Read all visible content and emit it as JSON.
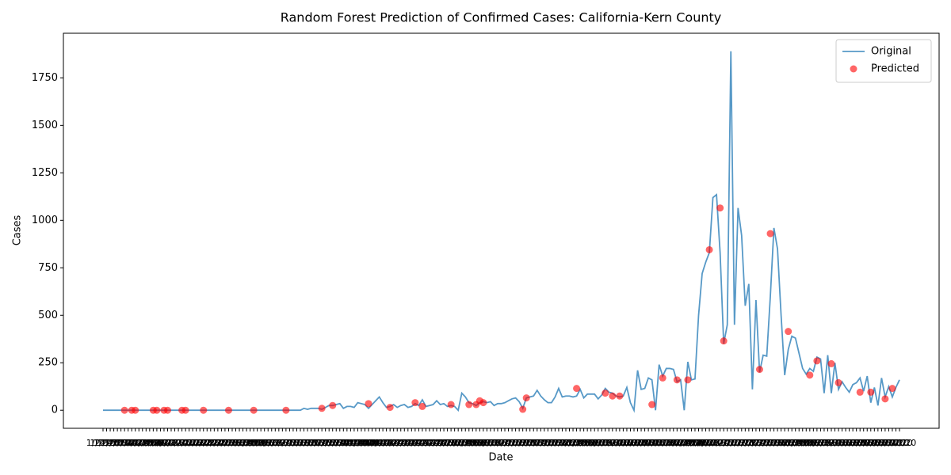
{
  "chart_data": {
    "type": "line",
    "title": "Random Forest Prediction of Confirmed Cases: California-Kern County",
    "x_label": "Date",
    "y_label": "Cases",
    "categories": [
      "1/22/20",
      "1/23/20",
      "1/24/20",
      "1/25/20",
      "1/26/20",
      "1/27/20",
      "1/28/20",
      "1/29/20",
      "1/30/20",
      "1/31/20",
      "2/1/20",
      "2/2/20",
      "2/3/20",
      "2/4/20",
      "2/5/20",
      "2/6/20",
      "2/7/20",
      "2/8/20",
      "2/9/20",
      "2/10/20",
      "2/11/20",
      "2/12/20",
      "2/13/20",
      "2/14/20",
      "2/15/20",
      "2/16/20",
      "2/17/20",
      "2/18/20",
      "2/19/20",
      "2/20/20",
      "2/21/20",
      "2/22/20",
      "2/23/20",
      "2/24/20",
      "2/25/20",
      "2/26/20",
      "2/27/20",
      "2/28/20",
      "2/29/20",
      "3/1/20",
      "3/2/20",
      "3/3/20",
      "3/4/20",
      "3/5/20",
      "3/6/20",
      "3/7/20",
      "3/8/20",
      "3/9/20",
      "3/10/20",
      "3/11/20",
      "3/12/20",
      "3/13/20",
      "3/14/20",
      "3/15/20",
      "3/16/20",
      "3/17/20",
      "3/18/20",
      "3/19/20",
      "3/20/20",
      "3/21/20",
      "3/22/20",
      "3/23/20",
      "3/24/20",
      "3/25/20",
      "3/26/20",
      "3/27/20",
      "3/28/20",
      "3/29/20",
      "3/30/20",
      "3/31/20",
      "4/1/20",
      "4/2/20",
      "4/3/20",
      "4/4/20",
      "4/5/20",
      "4/6/20",
      "4/7/20",
      "4/8/20",
      "4/9/20",
      "4/10/20",
      "4/11/20",
      "4/12/20",
      "4/13/20",
      "4/14/20",
      "4/15/20",
      "4/16/20",
      "4/17/20",
      "4/18/20",
      "4/19/20",
      "4/20/20",
      "4/21/20",
      "4/22/20",
      "4/23/20",
      "4/24/20",
      "4/25/20",
      "4/26/20",
      "4/27/20",
      "4/28/20",
      "4/29/20",
      "4/30/20",
      "5/1/20",
      "5/2/20",
      "5/3/20",
      "5/4/20",
      "5/5/20",
      "5/6/20",
      "5/7/20",
      "5/8/20",
      "5/9/20",
      "5/10/20",
      "5/11/20",
      "5/12/20",
      "5/13/20",
      "5/14/20",
      "5/15/20",
      "5/16/20",
      "5/17/20",
      "5/18/20",
      "5/19/20",
      "5/20/20",
      "5/21/20",
      "5/22/20",
      "5/23/20",
      "5/24/20",
      "5/25/20",
      "5/26/20",
      "5/27/20",
      "5/28/20",
      "5/29/20",
      "5/30/20",
      "5/31/20",
      "6/1/20",
      "6/2/20",
      "6/3/20",
      "6/4/20",
      "6/5/20",
      "6/6/20",
      "6/7/20",
      "6/8/20",
      "6/9/20",
      "6/10/20",
      "6/11/20",
      "6/12/20",
      "6/13/20",
      "6/14/20",
      "6/15/20",
      "6/16/20",
      "6/17/20",
      "6/18/20",
      "6/19/20",
      "6/20/20",
      "6/21/20",
      "6/22/20",
      "6/23/20",
      "6/24/20",
      "6/25/20",
      "6/26/20",
      "6/27/20",
      "6/28/20",
      "6/29/20",
      "6/30/20",
      "7/1/20",
      "7/2/20",
      "7/3/20",
      "7/4/20",
      "7/5/20",
      "7/6/20",
      "7/7/20",
      "7/8/20",
      "7/9/20",
      "7/10/20",
      "7/11/20",
      "7/12/20",
      "7/13/20",
      "7/14/20",
      "7/15/20",
      "7/16/20",
      "7/17/20",
      "7/18/20",
      "7/19/20",
      "7/20/20",
      "7/21/20",
      "7/22/20",
      "7/23/20",
      "7/24/20",
      "7/25/20",
      "7/26/20",
      "7/27/20",
      "7/28/20",
      "7/29/20",
      "7/30/20",
      "7/31/20",
      "8/1/20",
      "8/2/20",
      "8/3/20",
      "8/4/20",
      "8/5/20",
      "8/6/20",
      "8/7/20",
      "8/8/20",
      "8/9/20",
      "8/10/20",
      "8/11/20",
      "8/12/20",
      "8/13/20",
      "8/14/20",
      "8/15/20",
      "8/16/20",
      "8/17/20",
      "8/18/20",
      "8/19/20",
      "8/20/20",
      "8/21/20",
      "8/22/20",
      "8/23/20",
      "8/24/20",
      "8/25/20",
      "8/26/20",
      "8/27/20",
      "8/28/20",
      "8/29/20",
      "8/30/20",
      "8/31/20"
    ],
    "series": [
      {
        "name": "Original",
        "color": "#1f77b4",
        "type": "line",
        "values": [
          0,
          0,
          0,
          0,
          0,
          0,
          0,
          0,
          0,
          0,
          0,
          0,
          0,
          0,
          0,
          0,
          0,
          0,
          0,
          0,
          0,
          0,
          0,
          0,
          0,
          0,
          0,
          0,
          0,
          0,
          0,
          0,
          0,
          0,
          0,
          0,
          0,
          0,
          0,
          0,
          0,
          0,
          0,
          0,
          0,
          0,
          0,
          0,
          0,
          0,
          0,
          0,
          0,
          0,
          0,
          0,
          10,
          5,
          10,
          10,
          10,
          5,
          15,
          25,
          25,
          30,
          35,
          10,
          20,
          20,
          15,
          40,
          35,
          30,
          10,
          30,
          50,
          70,
          40,
          15,
          20,
          30,
          15,
          25,
          30,
          15,
          20,
          35,
          25,
          55,
          20,
          25,
          30,
          50,
          30,
          35,
          20,
          25,
          20,
          0,
          90,
          70,
          40,
          35,
          25,
          40,
          45,
          40,
          45,
          25,
          35,
          35,
          40,
          50,
          60,
          65,
          45,
          10,
          65,
          70,
          75,
          105,
          75,
          55,
          40,
          40,
          70,
          115,
          70,
          75,
          75,
          70,
          75,
          110,
          65,
          85,
          85,
          85,
          60,
          80,
          115,
          95,
          90,
          75,
          70,
          75,
          120,
          40,
          0,
          210,
          110,
          115,
          170,
          160,
          0,
          240,
          180,
          220,
          220,
          215,
          150,
          160,
          0,
          255,
          160,
          165,
          500,
          720,
          780,
          830,
          1120,
          1135,
          830,
          350,
          450,
          1890,
          450,
          1065,
          920,
          550,
          665,
          110,
          580,
          200,
          290,
          285,
          600,
          960,
          850,
          500,
          185,
          320,
          390,
          380,
          300,
          220,
          190,
          220,
          205,
          280,
          270,
          90,
          290,
          90,
          250,
          110,
          150,
          120,
          95,
          135,
          145,
          170,
          100,
          180,
          40,
          120,
          25,
          170,
          70,
          125,
          70,
          120,
          160
        ]
      },
      {
        "name": "Predicted",
        "color": "#ff0000",
        "type": "scatter",
        "x": [
          "1/28/20",
          "1/30/20",
          "1/31/20",
          "2/5/20",
          "2/6/20",
          "2/8/20",
          "2/9/20",
          "2/13/20",
          "2/14/20",
          "2/19/20",
          "2/26/20",
          "3/4/20",
          "3/13/20",
          "3/23/20",
          "3/26/20",
          "4/5/20",
          "4/11/20",
          "4/18/20",
          "4/20/20",
          "4/28/20",
          "5/3/20",
          "5/5/20",
          "5/6/20",
          "5/7/20",
          "5/18/20",
          "5/19/20",
          "6/2/20",
          "6/10/20",
          "6/12/20",
          "6/14/20",
          "6/23/20",
          "6/26/20",
          "6/30/20",
          "7/3/20",
          "7/9/20",
          "7/12/20",
          "7/13/20",
          "7/23/20",
          "7/26/20",
          "7/31/20",
          "8/6/20",
          "8/8/20",
          "8/12/20",
          "8/14/20",
          "8/20/20",
          "8/23/20",
          "8/27/20",
          "8/29/20"
        ],
        "values": [
          0,
          0,
          0,
          0,
          0,
          0,
          0,
          0,
          0,
          0,
          0,
          0,
          0,
          10,
          25,
          35,
          15,
          40,
          20,
          30,
          30,
          30,
          50,
          40,
          5,
          65,
          115,
          90,
          75,
          75,
          30,
          170,
          160,
          160,
          845,
          1065,
          365,
          215,
          930,
          415,
          185,
          260,
          245,
          145,
          95,
          95,
          60,
          115
        ]
      }
    ],
    "ylim": [
      -95,
      1985
    ],
    "yticks": [
      0,
      250,
      500,
      750,
      1000,
      1250,
      1500,
      1750
    ],
    "legend": "upper right"
  }
}
